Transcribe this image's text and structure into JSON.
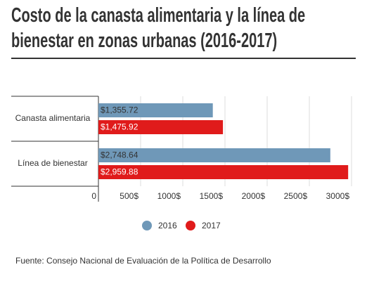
{
  "chart_data": {
    "type": "bar",
    "orientation": "horizontal",
    "title": "Costo de la canasta alimentaria y la línea de bienestar en zonas urbanas (2016-2017)",
    "source": "Fuente: Consejo Nacional de Evaluación de la Política de Desarrollo",
    "categories": [
      "Canasta alimentaria",
      "Línea de bienestar"
    ],
    "series": [
      {
        "name": "2016",
        "color": "#6f98b8",
        "values": [
          1355.72,
          2748.64
        ],
        "value_labels": [
          "$1,355.72",
          "$2,748.64"
        ]
      },
      {
        "name": "2017",
        "color": "#e01b1b",
        "values": [
          1475.92,
          2959.88
        ],
        "value_labels": [
          "$1,475.92",
          "$2,959.88"
        ]
      }
    ],
    "xlim": [
      0,
      3000
    ],
    "xticks": [
      0,
      {
        "value": 500,
        "label": "500$"
      },
      {
        "value": 1000,
        "label": "1000$"
      },
      {
        "value": 1500,
        "label": "1500$"
      },
      {
        "value": 2000,
        "label": "2000$"
      },
      {
        "value": 2500,
        "label": "2500$"
      },
      {
        "value": 3000,
        "label": "3000$"
      }
    ],
    "grid": true
  }
}
